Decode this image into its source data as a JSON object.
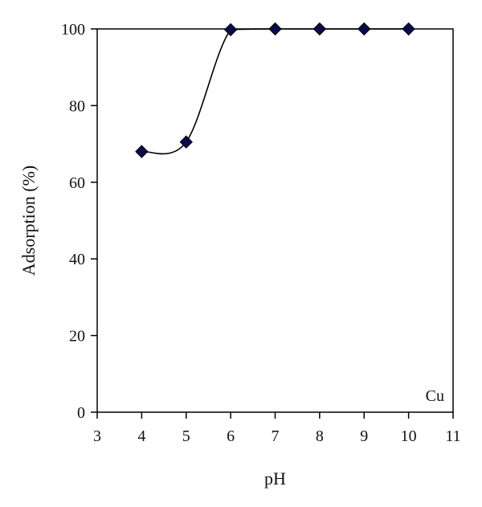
{
  "chart_data": {
    "type": "scatter",
    "title": "",
    "xlabel": "pH",
    "ylabel": "Adsorption (%)",
    "xlim": [
      3,
      11
    ],
    "ylim": [
      0,
      100
    ],
    "x_ticks": [
      3,
      4,
      5,
      6,
      7,
      8,
      9,
      10,
      11
    ],
    "y_ticks": [
      0,
      20,
      40,
      60,
      80,
      100
    ],
    "grid": false,
    "legend": "none",
    "annotation": "Cu",
    "series": [
      {
        "x": [
          4,
          5,
          6,
          7,
          8,
          9,
          10
        ],
        "y": [
          68,
          70.5,
          99.8,
          100,
          100,
          100,
          100
        ],
        "marker": "diamond",
        "marker_color": "#0a0a4a",
        "fit_line": "smooth"
      }
    ]
  }
}
